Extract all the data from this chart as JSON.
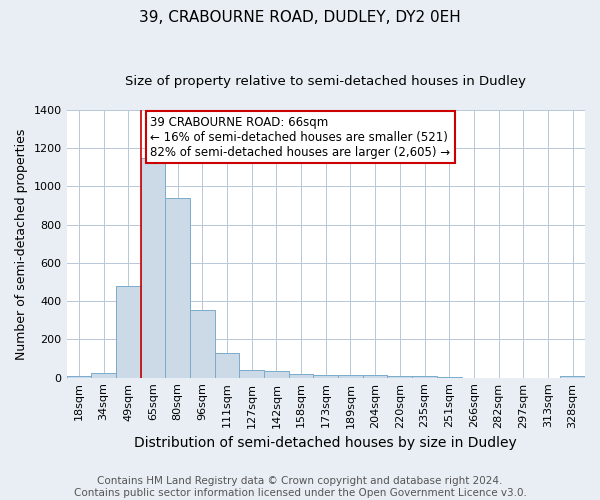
{
  "title1": "39, CRABOURNE ROAD, DUDLEY, DY2 0EH",
  "title2": "Size of property relative to semi-detached houses in Dudley",
  "xlabel": "Distribution of semi-detached houses by size in Dudley",
  "ylabel": "Number of semi-detached properties",
  "footnote": "Contains HM Land Registry data © Crown copyright and database right 2024.\nContains public sector information licensed under the Open Government Licence v3.0.",
  "annotation_title": "39 CRABOURNE ROAD: 66sqm",
  "annotation_line1": "← 16% of semi-detached houses are smaller (521)",
  "annotation_line2": "82% of semi-detached houses are larger (2,605) →",
  "categories": [
    "18sqm",
    "34sqm",
    "49sqm",
    "65sqm",
    "80sqm",
    "96sqm",
    "111sqm",
    "127sqm",
    "142sqm",
    "158sqm",
    "173sqm",
    "189sqm",
    "204sqm",
    "220sqm",
    "235sqm",
    "251sqm",
    "266sqm",
    "282sqm",
    "297sqm",
    "313sqm",
    "328sqm"
  ],
  "values": [
    8,
    25,
    480,
    1150,
    940,
    355,
    130,
    40,
    33,
    20,
    15,
    13,
    13,
    10,
    9,
    5,
    0,
    0,
    0,
    0,
    8
  ],
  "property_bin_index": 3,
  "bar_color": "#ccdae8",
  "bar_edge_color": "#7aabcc",
  "property_line_color": "#cc0000",
  "ylim": [
    0,
    1400
  ],
  "yticks": [
    0,
    200,
    400,
    600,
    800,
    1000,
    1200,
    1400
  ],
  "bg_color": "#e8eef4",
  "plot_bg_color": "#ffffff",
  "grid_color": "#b8c8d8",
  "annotation_box_color": "#ffffff",
  "annotation_border_color": "#cc0000",
  "title1_fontsize": 11,
  "title2_fontsize": 9.5,
  "xlabel_fontsize": 10,
  "ylabel_fontsize": 9,
  "tick_fontsize": 8,
  "footnote_fontsize": 7.5,
  "annotation_fontsize": 8.5
}
